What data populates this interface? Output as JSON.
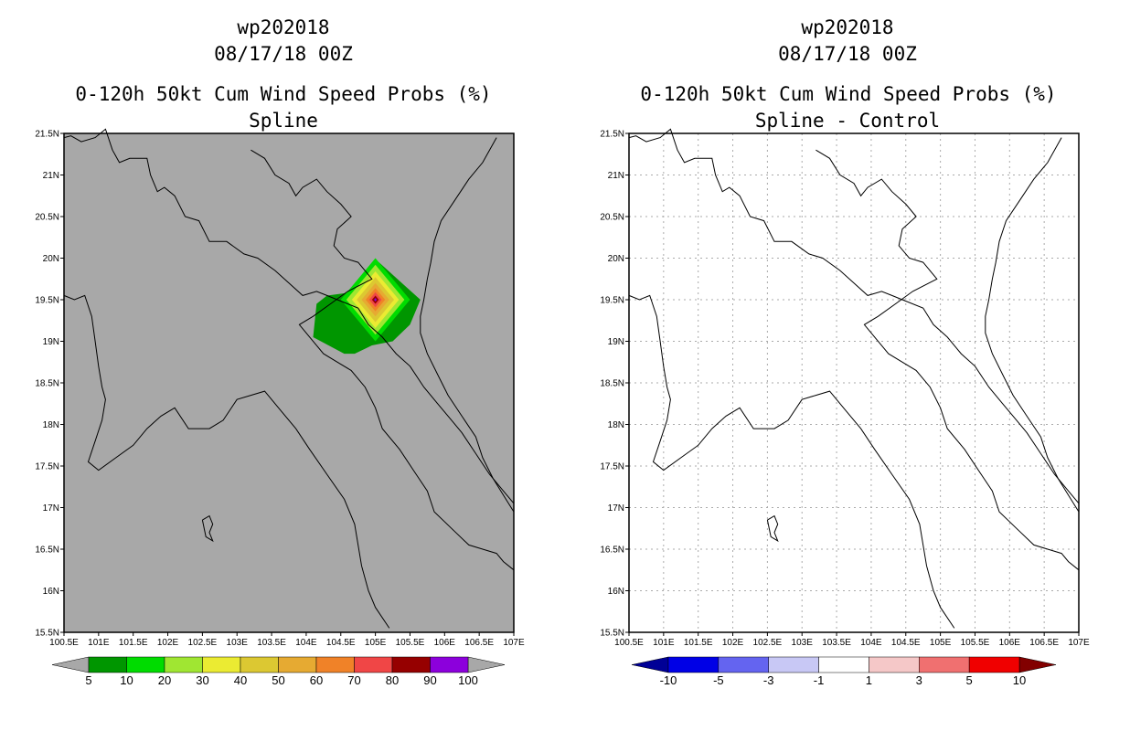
{
  "panels": [
    {
      "storm": "wp202018",
      "datetime": "08/17/18 00Z",
      "product": "0-120h 50kt Cum Wind Speed Probs (%)",
      "subtitle": "Spline",
      "background": "#a8a8a8",
      "show_grid": false,
      "colorbar": {
        "colors": [
          "#009600",
          "#00dc00",
          "#a0e632",
          "#ebeb32",
          "#dcc832",
          "#e6aa32",
          "#f08228",
          "#f04646",
          "#960000",
          "#8c00dc"
        ],
        "labels": [
          "5",
          "10",
          "20",
          "30",
          "40",
          "50",
          "60",
          "70",
          "80",
          "90",
          "100"
        ],
        "end_arrows": [
          "#a8a8a8",
          "#a8a8a8"
        ]
      }
    },
    {
      "storm": "wp202018",
      "datetime": "08/17/18 00Z",
      "product": "0-120h 50kt Cum Wind Speed Probs (%)",
      "subtitle": "Spline - Control",
      "background": "#ffffff",
      "show_grid": true,
      "colorbar": {
        "colors": [
          "#0000e6",
          "#6464f0",
          "#c8c8f5",
          "#ffffff",
          "#f5c8c8",
          "#f07070",
          "#f00000"
        ],
        "labels": [
          "-10",
          "-5",
          "-3",
          "-1",
          "1",
          "3",
          "5",
          "10"
        ],
        "end_arrows": [
          "#000096",
          "#820000"
        ]
      }
    }
  ],
  "axes": {
    "x_ticks": [
      "100.5E",
      "101E",
      "101.5E",
      "102E",
      "102.5E",
      "103E",
      "103.5E",
      "104E",
      "104.5E",
      "105E",
      "105.5E",
      "106E",
      "106.5E",
      "107E"
    ],
    "y_ticks": [
      "21.5N",
      "21N",
      "20.5N",
      "20N",
      "19.5N",
      "19N",
      "18.5N",
      "18N",
      "17.5N",
      "17N",
      "16.5N",
      "16N",
      "15.5N"
    ],
    "lon_range": [
      100.5,
      107
    ],
    "lat_range": [
      15.5,
      21.5
    ]
  },
  "probability_field": {
    "center_lon": 105.0,
    "center_lat": 19.5
  }
}
